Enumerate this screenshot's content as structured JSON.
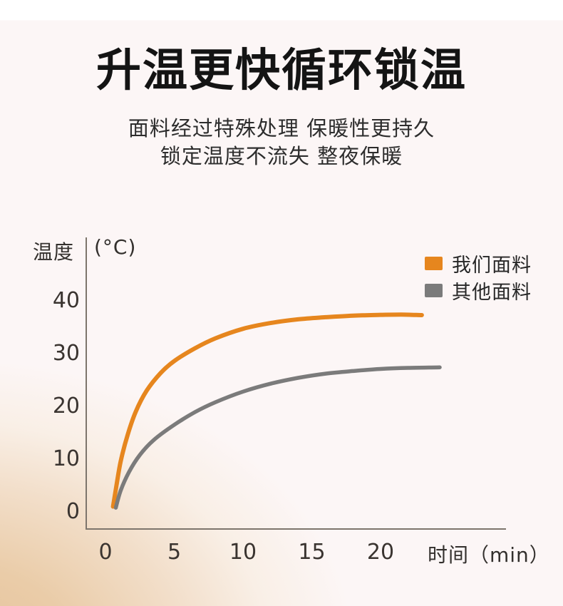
{
  "header": {
    "title": "升温更快循环锁温",
    "subtitle_line1": "面料经过特殊处理 保暖性更持久",
    "subtitle_line2": "锁定温度不流失 整夜保暖"
  },
  "chart_data": {
    "type": "line",
    "title": "",
    "grid": false,
    "legend_position": "top-right",
    "y_axis": {
      "label": "温度",
      "unit": "(°C)",
      "ticks": [
        0,
        10,
        20,
        30,
        40
      ],
      "range": [
        0,
        44
      ]
    },
    "x_axis": {
      "label": "时间（min）",
      "ticks": [
        0,
        5,
        10,
        15,
        20
      ],
      "range": [
        0,
        26
      ],
      "unit": "min"
    },
    "series": [
      {
        "name": "我们面料",
        "color": "#E6861E",
        "line_width": 6,
        "points": [
          [
            0.55,
            1
          ],
          [
            0.8,
            5
          ],
          [
            1.1,
            9.5
          ],
          [
            1.6,
            14.5
          ],
          [
            2.2,
            19
          ],
          [
            3,
            23
          ],
          [
            4,
            26.3
          ],
          [
            5,
            28.6
          ],
          [
            6.5,
            31
          ],
          [
            8,
            32.9
          ],
          [
            10,
            34.7
          ],
          [
            12,
            35.8
          ],
          [
            14,
            36.5
          ],
          [
            16,
            36.9
          ],
          [
            18,
            37.2
          ],
          [
            20,
            37.35
          ],
          [
            21.5,
            37.4
          ],
          [
            23,
            37.3
          ]
        ]
      },
      {
        "name": "其他面料",
        "color": "#7B7B7B",
        "line_width": 5.5,
        "points": [
          [
            0.75,
            0.8
          ],
          [
            1.1,
            4
          ],
          [
            1.7,
            7.5
          ],
          [
            2.5,
            10.8
          ],
          [
            3.5,
            13.6
          ],
          [
            5,
            16.5
          ],
          [
            6.5,
            18.9
          ],
          [
            8,
            20.8
          ],
          [
            10,
            22.8
          ],
          [
            12,
            24.3
          ],
          [
            14,
            25.4
          ],
          [
            16,
            26.2
          ],
          [
            18,
            26.7
          ],
          [
            20,
            27.1
          ],
          [
            22,
            27.3
          ],
          [
            24.3,
            27.4
          ]
        ]
      }
    ]
  },
  "colors": {
    "accent_orange": "#E6861E",
    "series_gray": "#7B7B7B",
    "axis_line": "#7d756c",
    "warm_background": "#E5C29B",
    "base_background": "#FCF6F6"
  }
}
